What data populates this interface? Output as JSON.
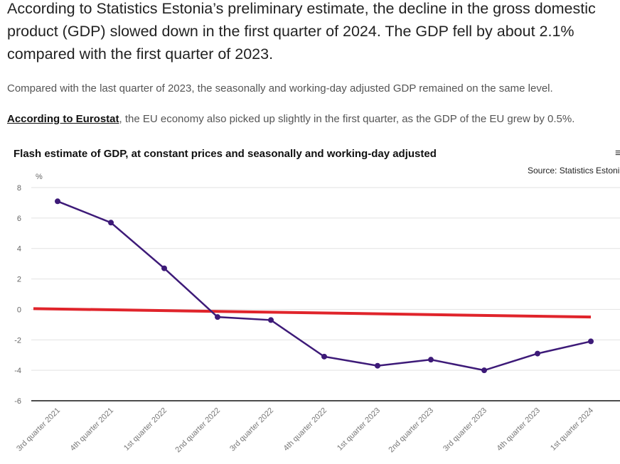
{
  "article": {
    "lead": "According to Statistics Estonia’s preliminary estimate, the decline in the gross domestic product (GDP) slowed down in the first quarter of 2024. The GDP fell by about 2.1% compared with the first quarter of 2023.",
    "para1": "Compared with the last quarter of 2023, the seasonally and working-day adjusted GDP remained on the same level.",
    "para2_link": "According to Eurostat",
    "para2_rest": ", the EU economy also picked up slightly in the first quarter, as the GDP of the EU grew by 0.5%."
  },
  "chart_menu_icon": "hamburger-menu-icon",
  "chart_data": {
    "type": "line",
    "title": "Flash estimate of GDP, at constant prices and seasonally and working-day adjusted",
    "source": "Source: Statistics Estoni",
    "ylabel": "%",
    "ylim": [
      -6,
      8
    ],
    "yticks": [
      "8",
      "6",
      "4",
      "2",
      "0",
      "-2",
      "-4",
      "-6"
    ],
    "grid": true,
    "categories": [
      "3rd quarter 2021",
      "4th quarter 2021",
      "1st quarter 2022",
      "2nd quarter 2022",
      "3rd quarter 2022",
      "4th quarter 2022",
      "1st quarter 2023",
      "2nd quarter 2023",
      "3rd quarter 2023",
      "4th quarter 2023",
      "1st quarter 2024"
    ],
    "series": [
      {
        "values": [
          7.1,
          5.7,
          2.7,
          -0.5,
          -0.7,
          -3.1,
          -3.7,
          -3.3,
          -4.0,
          -2.9,
          -2.1
        ],
        "color": "#3d1a78"
      },
      {
        "type": "trend",
        "start": 0.05,
        "end": -0.5,
        "color": "#e0242b"
      }
    ]
  }
}
